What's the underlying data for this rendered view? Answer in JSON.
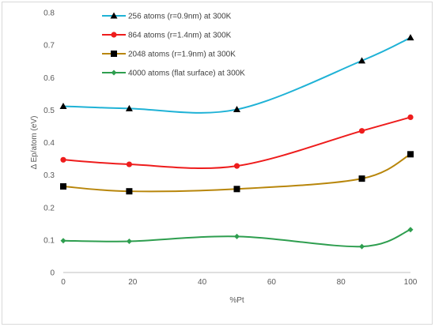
{
  "chart_data": {
    "type": "line",
    "title": "",
    "xlabel": "%Pt",
    "ylabel": "Δ Ep/atom (eV)",
    "xlim": [
      0,
      100
    ],
    "ylim": [
      0,
      0.8
    ],
    "xticks": [
      0,
      20,
      40,
      60,
      80,
      100
    ],
    "yticks": [
      0,
      0.1,
      0.2,
      0.3,
      0.4,
      0.5,
      0.6,
      0.7,
      0.8
    ],
    "xtick_labels": [
      "0",
      "20",
      "40",
      "60",
      "80",
      "100"
    ],
    "ytick_labels": [
      "0",
      "0.1",
      "0.2",
      "0.3",
      "0.4",
      "0.5",
      "0.6",
      "0.7",
      "0.8"
    ],
    "grid": "none",
    "legend_position": "top-left",
    "smooth": true,
    "series": [
      {
        "name": "256 atoms (r=0.9nm) at 300K",
        "color": "#1fb2d6",
        "marker": "triangle",
        "x": [
          0,
          19,
          50,
          86,
          100
        ],
        "y": [
          0.512,
          0.505,
          0.502,
          0.652,
          0.723
        ]
      },
      {
        "name": "864 atoms (r=1.4nm) at 300K",
        "color": "#ee1c1c",
        "marker": "circle",
        "x": [
          0,
          19,
          50,
          86,
          100
        ],
        "y": [
          0.347,
          0.333,
          0.328,
          0.436,
          0.478
        ]
      },
      {
        "name": "2048 atoms (r=1.9nm) at 300K",
        "color": "#b8860b",
        "marker": "square",
        "x": [
          0,
          19,
          50,
          86,
          100
        ],
        "y": [
          0.265,
          0.25,
          0.257,
          0.289,
          0.364
        ]
      },
      {
        "name": "4000 atoms (flat surface) at 300K",
        "color": "#2e9e4f",
        "marker": "diamond",
        "x": [
          0,
          19,
          50,
          86,
          100
        ],
        "y": [
          0.098,
          0.096,
          0.111,
          0.08,
          0.132
        ]
      }
    ]
  }
}
